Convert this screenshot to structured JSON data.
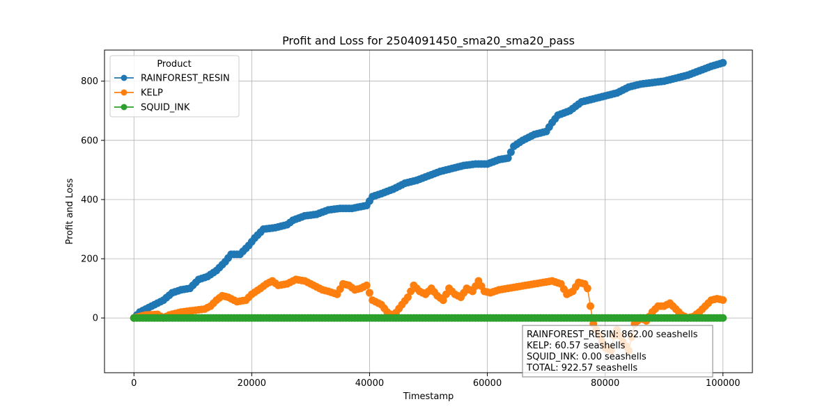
{
  "chart_data": {
    "type": "line",
    "title": "Profit and Loss for 2504091450_sma20_sma20_pass",
    "xlabel": "Timestamp",
    "ylabel": "Profit and Loss",
    "xlim": [
      -5000,
      105000
    ],
    "ylim": [
      -185,
      905
    ],
    "xticks": [
      0,
      20000,
      40000,
      60000,
      80000,
      100000
    ],
    "yticks": [
      0,
      200,
      400,
      600,
      800
    ],
    "grid": true,
    "legend": {
      "title": "Product",
      "placement": "upper-left"
    },
    "series": [
      {
        "name": "RAINFOREST_RESIN",
        "color": "#1f77b4",
        "x": [
          0,
          1000,
          2500,
          3500,
          5000,
          6500,
          8000,
          9500,
          11000,
          12500,
          14000,
          15500,
          16500,
          18000,
          19500,
          20500,
          22000,
          24000,
          26000,
          27000,
          29000,
          31000,
          33000,
          35000,
          37000,
          39500,
          40500,
          42000,
          44000,
          46000,
          48000,
          50000,
          52000,
          54000,
          56000,
          58000,
          60000,
          62000,
          63500,
          64500,
          66000,
          68000,
          70000,
          71000,
          72000,
          74000,
          76000,
          78000,
          80000,
          82000,
          84000,
          86000,
          88000,
          90000,
          92000,
          94000,
          96000,
          98000,
          100000
        ],
        "values": [
          0,
          20,
          35,
          45,
          60,
          85,
          95,
          100,
          130,
          140,
          160,
          190,
          215,
          215,
          245,
          270,
          300,
          305,
          315,
          330,
          345,
          350,
          365,
          370,
          370,
          380,
          410,
          420,
          435,
          455,
          465,
          480,
          495,
          505,
          515,
          520,
          520,
          535,
          540,
          580,
          600,
          620,
          630,
          660,
          685,
          700,
          730,
          740,
          750,
          760,
          780,
          790,
          795,
          800,
          810,
          820,
          835,
          850,
          862
        ]
      },
      {
        "name": "KELP",
        "color": "#ff7f0e",
        "x": [
          0,
          2000,
          4000,
          5000,
          6000,
          8000,
          10000,
          12000,
          13000,
          14000,
          15000,
          16000,
          17500,
          19000,
          20000,
          21500,
          22500,
          23500,
          24500,
          26000,
          27500,
          29000,
          30500,
          32000,
          33000,
          34500,
          35500,
          36500,
          37500,
          38500,
          39500,
          40500,
          42000,
          43000,
          44000,
          45500,
          46500,
          47500,
          48500,
          49500,
          50500,
          51500,
          52500,
          53500,
          54500,
          55500,
          56500,
          57500,
          58500,
          59500,
          60500,
          62000,
          63500,
          65000,
          66500,
          68000,
          69500,
          71000,
          72500,
          73500,
          74500,
          75500,
          76500,
          77000,
          77500,
          78000,
          79000,
          80000,
          81000,
          81500,
          82000,
          83000,
          84000,
          85000,
          86000,
          87000,
          88000,
          89000,
          90000,
          91000,
          92000,
          93000,
          94000,
          95000,
          96000,
          97000,
          98000,
          99000,
          100000
        ],
        "values": [
          0,
          10,
          12,
          0,
          10,
          20,
          25,
          30,
          40,
          60,
          75,
          70,
          55,
          60,
          80,
          100,
          115,
          125,
          110,
          115,
          130,
          125,
          110,
          95,
          90,
          80,
          115,
          110,
          95,
          100,
          110,
          60,
          45,
          20,
          5,
          45,
          70,
          110,
          90,
          80,
          100,
          75,
          60,
          100,
          80,
          70,
          100,
          90,
          125,
          90,
          85,
          95,
          100,
          105,
          110,
          115,
          120,
          125,
          115,
          80,
          90,
          120,
          115,
          100,
          40,
          -20,
          -60,
          -100,
          -110,
          -60,
          -40,
          -80,
          -110,
          -20,
          0,
          -10,
          20,
          40,
          40,
          50,
          30,
          10,
          0,
          5,
          20,
          40,
          60,
          65,
          60.57
        ]
      },
      {
        "name": "SQUID_INK",
        "color": "#2ca02c",
        "x": [
          0,
          100000
        ],
        "values": [
          0,
          0
        ]
      }
    ],
    "annotation": {
      "lines": [
        "RAINFOREST_RESIN: 862.00 seashells",
        "KELP: 60.57 seashells",
        "SQUID_INK: 0.00 seashells",
        "TOTAL: 922.57 seashells"
      ]
    }
  }
}
